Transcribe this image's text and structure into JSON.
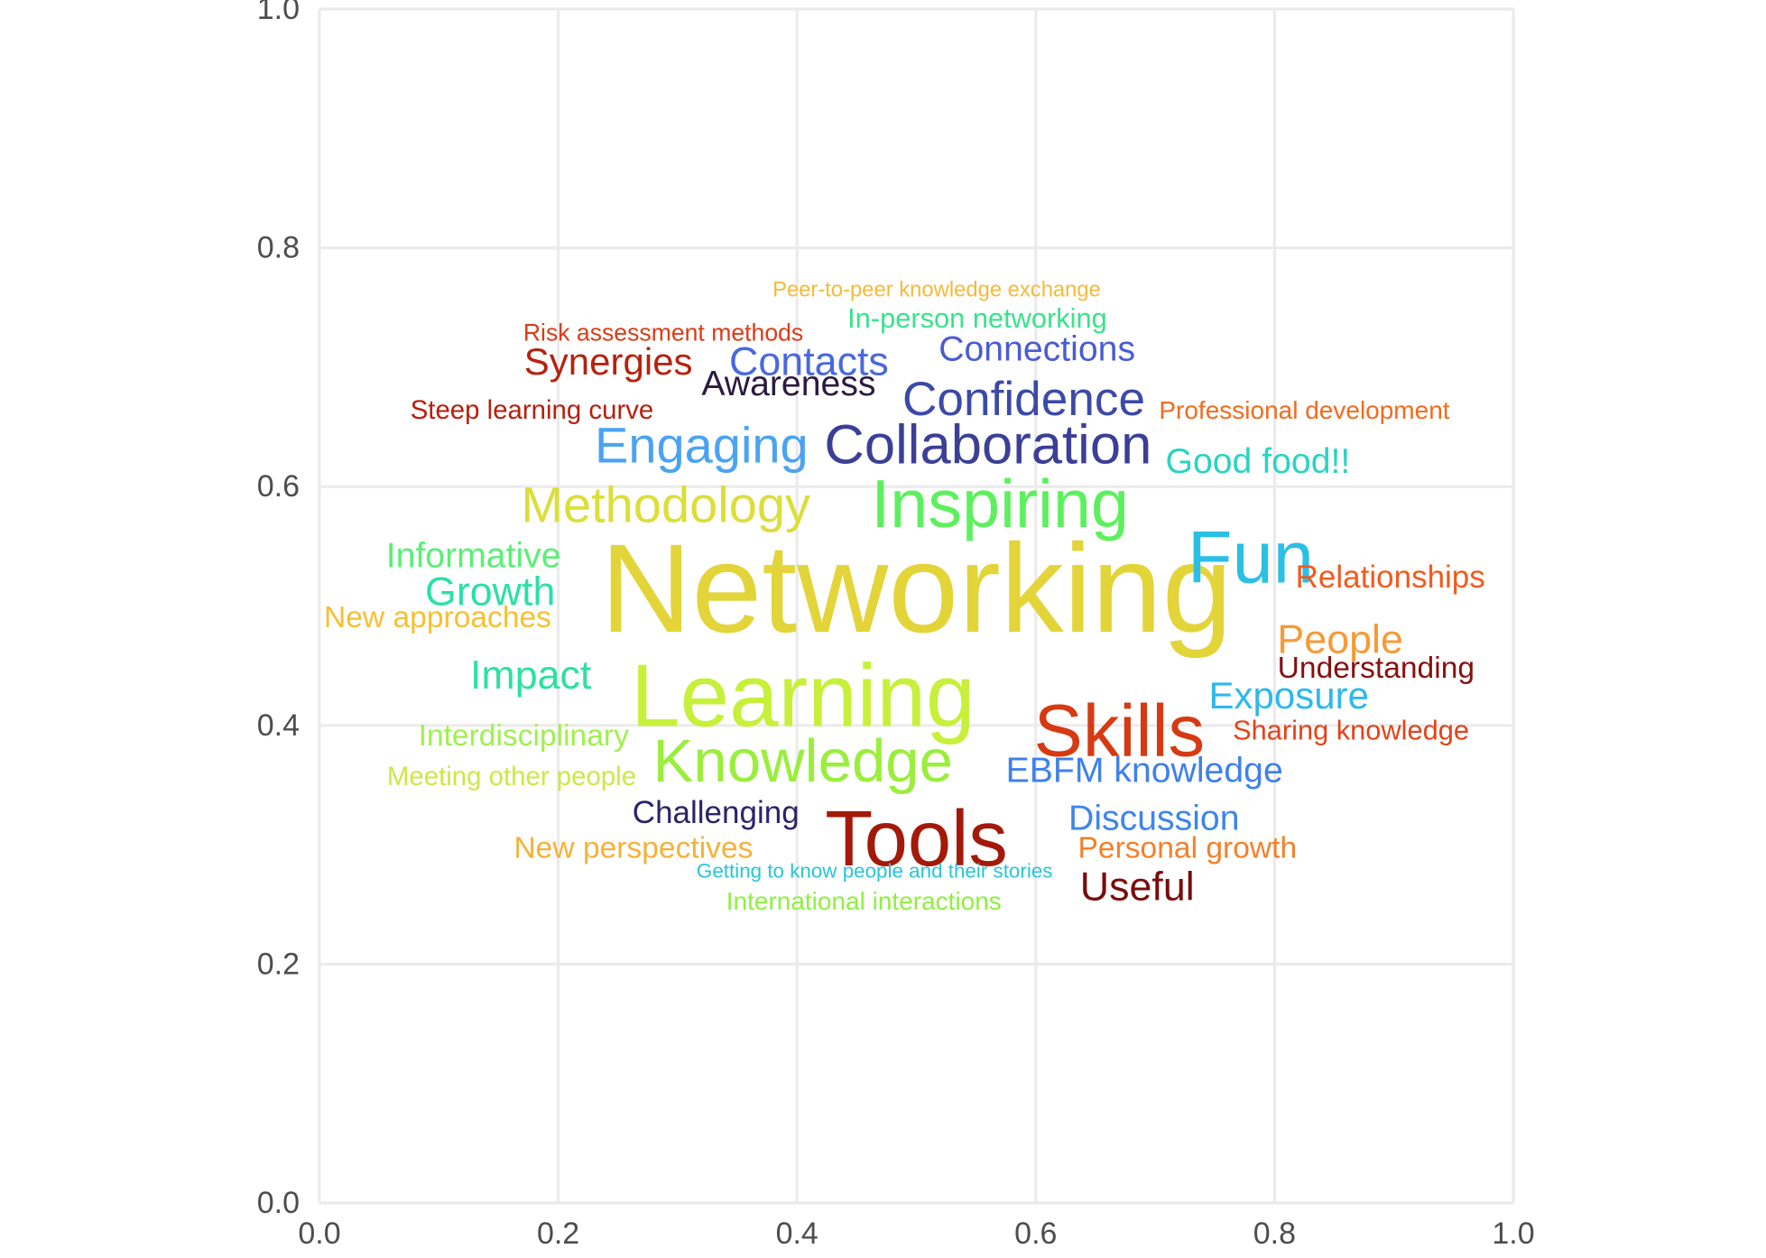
{
  "chart_data": {
    "type": "wordcloud",
    "xlim": [
      0,
      1
    ],
    "ylim": [
      0,
      1
    ],
    "x_ticks": [
      "0.0",
      "0.2",
      "0.4",
      "0.6",
      "0.8",
      "1.0"
    ],
    "y_ticks": [
      "0.0",
      "0.2",
      "0.4",
      "0.6",
      "0.8",
      "1.0"
    ],
    "grid": true,
    "words": [
      {
        "text": "Networking",
        "x": 0.5,
        "y": 0.515,
        "weight": 100,
        "color": "#e3d43a"
      },
      {
        "text": "Learning",
        "x": 0.405,
        "y": 0.425,
        "weight": 70,
        "color": "#c6f03a"
      },
      {
        "text": "Tools",
        "x": 0.5,
        "y": 0.305,
        "weight": 62,
        "color": "#a31a0a"
      },
      {
        "text": "Skills",
        "x": 0.67,
        "y": 0.395,
        "weight": 58,
        "color": "#d63a12"
      },
      {
        "text": "Fun",
        "x": 0.78,
        "y": 0.54,
        "weight": 58,
        "color": "#2bbfe6"
      },
      {
        "text": "Inspiring",
        "x": 0.57,
        "y": 0.585,
        "weight": 54,
        "color": "#5df05e"
      },
      {
        "text": "Knowledge",
        "x": 0.405,
        "y": 0.37,
        "weight": 48,
        "color": "#9aee3c"
      },
      {
        "text": "Collaboration",
        "x": 0.56,
        "y": 0.635,
        "weight": 44,
        "color": "#3b3f96"
      },
      {
        "text": "Methodology",
        "x": 0.29,
        "y": 0.585,
        "weight": 40,
        "color": "#dcde3a"
      },
      {
        "text": "Engaging",
        "x": 0.32,
        "y": 0.635,
        "weight": 40,
        "color": "#4aa3f2"
      },
      {
        "text": "Confidence",
        "x": 0.59,
        "y": 0.673,
        "weight": 38,
        "color": "#3b4aa6"
      },
      {
        "text": "Contacts",
        "x": 0.41,
        "y": 0.705,
        "weight": 32,
        "color": "#4a68dd"
      },
      {
        "text": "People",
        "x": 0.855,
        "y": 0.472,
        "weight": 32,
        "color": "#f79a35"
      },
      {
        "text": "Growth",
        "x": 0.143,
        "y": 0.512,
        "weight": 32,
        "color": "#2ae0a8"
      },
      {
        "text": "Impact",
        "x": 0.177,
        "y": 0.442,
        "weight": 32,
        "color": "#2ee0a0"
      },
      {
        "text": "Synergies",
        "x": 0.242,
        "y": 0.705,
        "weight": 30,
        "color": "#b5220f"
      },
      {
        "text": "Useful",
        "x": 0.685,
        "y": 0.265,
        "weight": 32,
        "color": "#7a0c0c"
      },
      {
        "text": "Exposure",
        "x": 0.812,
        "y": 0.425,
        "weight": 30,
        "color": "#2eb8ec"
      },
      {
        "text": "Informative",
        "x": 0.129,
        "y": 0.542,
        "weight": 28,
        "color": "#58f074"
      },
      {
        "text": "Discussion",
        "x": 0.699,
        "y": 0.322,
        "weight": 28,
        "color": "#3d86e9"
      },
      {
        "text": "EBFM knowledge",
        "x": 0.691,
        "y": 0.362,
        "weight": 28,
        "color": "#3f80eb"
      },
      {
        "text": "Connections",
        "x": 0.601,
        "y": 0.715,
        "weight": 28,
        "color": "#4a5bd2"
      },
      {
        "text": "Good food!!",
        "x": 0.786,
        "y": 0.621,
        "weight": 28,
        "color": "#2ad3c4"
      },
      {
        "text": "Awareness",
        "x": 0.393,
        "y": 0.686,
        "weight": 28,
        "color": "#2c1a3f"
      },
      {
        "text": "Relationships",
        "x": 0.897,
        "y": 0.524,
        "weight": 25,
        "color": "#f25a1d"
      },
      {
        "text": "Challenging",
        "x": 0.332,
        "y": 0.327,
        "weight": 25,
        "color": "#2b2467"
      },
      {
        "text": "Understanding",
        "x": 0.885,
        "y": 0.448,
        "weight": 24,
        "color": "#86100f"
      },
      {
        "text": "New approaches",
        "x": 0.099,
        "y": 0.49,
        "weight": 24,
        "color": "#f6c033"
      },
      {
        "text": "Interdisciplinary",
        "x": 0.171,
        "y": 0.391,
        "weight": 24,
        "color": "#9ff04d"
      },
      {
        "text": "New perspectives",
        "x": 0.263,
        "y": 0.297,
        "weight": 24,
        "color": "#f5b13a"
      },
      {
        "text": "Personal growth",
        "x": 0.727,
        "y": 0.297,
        "weight": 24,
        "color": "#f4802a"
      },
      {
        "text": "Sharing knowledge",
        "x": 0.864,
        "y": 0.396,
        "weight": 22,
        "color": "#e54219"
      },
      {
        "text": "In-person networking",
        "x": 0.551,
        "y": 0.741,
        "weight": 22,
        "color": "#38e38a"
      },
      {
        "text": "Meeting other people",
        "x": 0.161,
        "y": 0.357,
        "weight": 21,
        "color": "#cce846"
      },
      {
        "text": "Steep learning curve",
        "x": 0.178,
        "y": 0.664,
        "weight": 21,
        "color": "#b81e0b"
      },
      {
        "text": "Professional development",
        "x": 0.825,
        "y": 0.664,
        "weight": 20,
        "color": "#f46a1d"
      },
      {
        "text": "International interactions",
        "x": 0.456,
        "y": 0.253,
        "weight": 20,
        "color": "#8ef03f"
      },
      {
        "text": "Risk assessment methods",
        "x": 0.288,
        "y": 0.729,
        "weight": 19,
        "color": "#dd3b17"
      },
      {
        "text": "Peer-to-peer knowledge exchange",
        "x": 0.517,
        "y": 0.765,
        "weight": 17,
        "color": "#f6ba3a"
      },
      {
        "text": "Getting to know people and their stories",
        "x": 0.465,
        "y": 0.278,
        "weight": 16,
        "color": "#26c6d7"
      }
    ]
  }
}
